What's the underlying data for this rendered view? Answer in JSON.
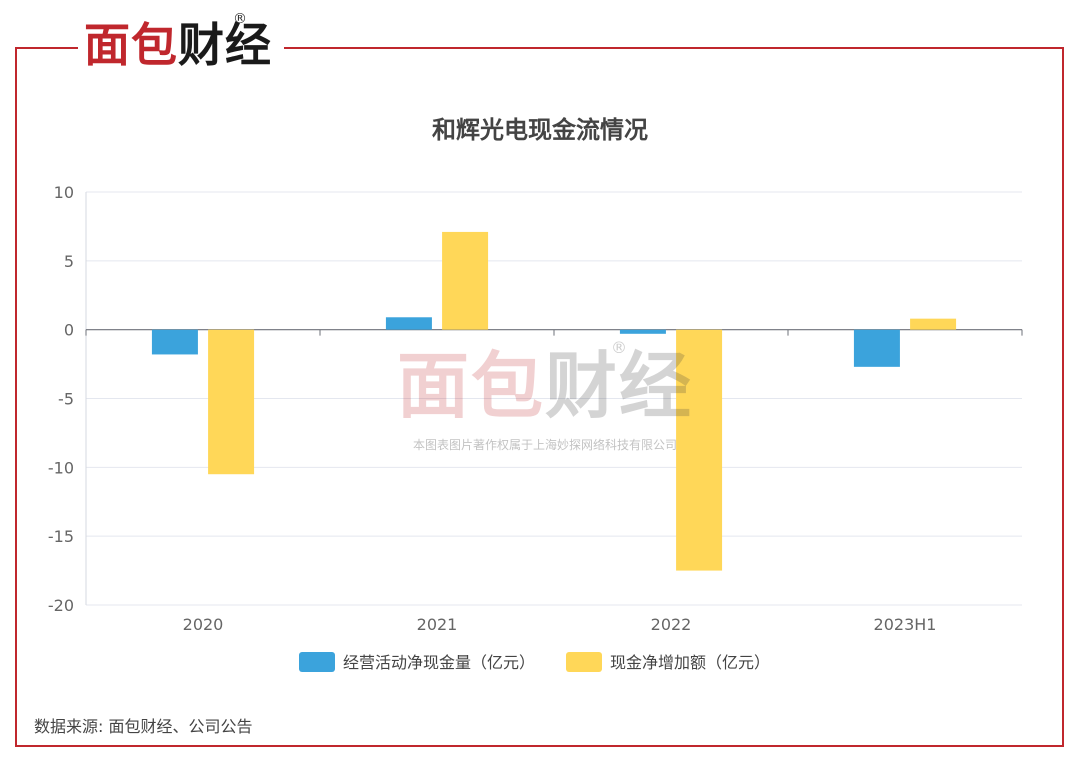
{
  "brand": {
    "logo_part1": "面包",
    "logo_part2": "财经",
    "registered_mark": "®",
    "frame_color": "#c0272d",
    "dark_color": "#1a1a1a"
  },
  "watermark": {
    "logo_part1": "面包",
    "logo_part2": "财经",
    "registered_mark": "®",
    "copyright_text": "本图表图片著作权属于上海妙探网络科技有限公司"
  },
  "source_text": "数据来源: 面包财经、公司公告",
  "chart_data": {
    "type": "bar",
    "title": "和辉光电现金流情况",
    "categories": [
      "2020",
      "2021",
      "2022",
      "2023H1"
    ],
    "series": [
      {
        "name": "经营活动净现金量（亿元）",
        "color": "#3ba3dc",
        "values": [
          -1.8,
          0.9,
          -0.3,
          -2.7
        ]
      },
      {
        "name": "现金净增加额（亿元）",
        "color": "#ffd758",
        "values": [
          -10.5,
          7.1,
          -17.5,
          0.8
        ]
      }
    ],
    "ylim": [
      -20,
      10
    ],
    "yticks": [
      "10",
      "5",
      "0",
      "-5",
      "-10",
      "-15",
      "-20"
    ],
    "grid": true,
    "legend_position": "bottom"
  }
}
